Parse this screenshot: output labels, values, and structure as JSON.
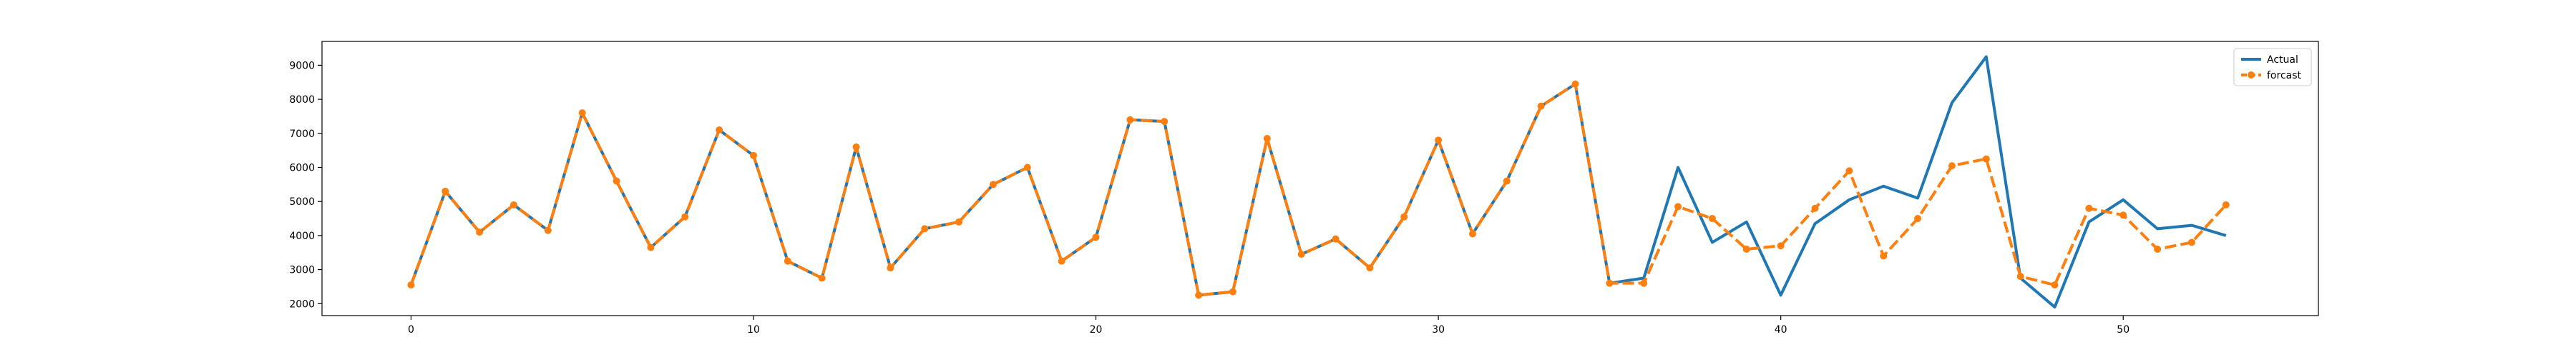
{
  "chart_data": {
    "type": "line",
    "title": "",
    "xlabel": "",
    "ylabel": "",
    "xlim": [
      -2.6,
      55.7
    ],
    "ylim": [
      1650,
      9700
    ],
    "xticks": [
      0,
      10,
      20,
      30,
      40,
      50
    ],
    "yticks": [
      2000,
      3000,
      4000,
      5000,
      6000,
      7000,
      8000,
      9000
    ],
    "grid": false,
    "legend_position": "top-right",
    "series": [
      {
        "name": "Actual",
        "color": "#1f77b4",
        "line_style": "solid",
        "marker": "none",
        "x": [
          0,
          1,
          2,
          3,
          4,
          5,
          6,
          7,
          8,
          9,
          10,
          11,
          12,
          13,
          14,
          15,
          16,
          17,
          18,
          19,
          20,
          21,
          22,
          23,
          24,
          25,
          26,
          27,
          28,
          29,
          30,
          31,
          32,
          33,
          34,
          35,
          36,
          37,
          38,
          39,
          40,
          41,
          42,
          43,
          44,
          45,
          46,
          47,
          48,
          49,
          50,
          51,
          52,
          53
        ],
        "y": [
          2550,
          5300,
          4100,
          4900,
          4150,
          7600,
          5600,
          3650,
          4550,
          7100,
          6350,
          3250,
          2750,
          6600,
          3050,
          4200,
          4400,
          5500,
          6000,
          3250,
          3950,
          7400,
          7350,
          2250,
          2350,
          6850,
          3450,
          3900,
          3050,
          4550,
          6800,
          4050,
          5600,
          7800,
          8450,
          2600,
          2750,
          6000,
          3800,
          4400,
          2250,
          4350,
          5050,
          5450,
          5100,
          7900,
          9250,
          2750,
          1900,
          4400,
          5050,
          4200,
          4300,
          4000
        ]
      },
      {
        "name": "forcast",
        "color": "#ff7f0e",
        "line_style": "dashed",
        "marker": "circle",
        "x": [
          0,
          1,
          2,
          3,
          4,
          5,
          6,
          7,
          8,
          9,
          10,
          11,
          12,
          13,
          14,
          15,
          16,
          17,
          18,
          19,
          20,
          21,
          22,
          23,
          24,
          25,
          26,
          27,
          28,
          29,
          30,
          31,
          32,
          33,
          34,
          35,
          36,
          37,
          38,
          39,
          40,
          41,
          42,
          43,
          44,
          45,
          46,
          47,
          48,
          49,
          50,
          51,
          52,
          53
        ],
        "y": [
          2550,
          5300,
          4100,
          4900,
          4150,
          7600,
          5600,
          3650,
          4550,
          7100,
          6350,
          3250,
          2750,
          6600,
          3050,
          4200,
          4400,
          5500,
          6000,
          3250,
          3950,
          7400,
          7350,
          2250,
          2350,
          6850,
          3450,
          3900,
          3050,
          4550,
          6800,
          4050,
          5600,
          7800,
          8450,
          2600,
          2600,
          4850,
          4500,
          3600,
          3700,
          4800,
          5900,
          3400,
          4500,
          6050,
          6250,
          2800,
          2550,
          4800,
          4600,
          3600,
          3800,
          4900
        ]
      }
    ]
  }
}
